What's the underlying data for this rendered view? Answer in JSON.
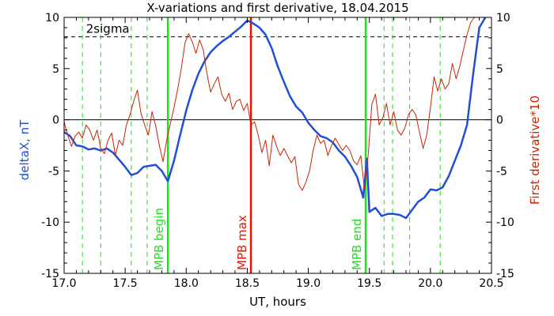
{
  "chart_data": {
    "type": "line",
    "title": "X-variations and first derivative, 18.04.2015",
    "xlabel": "UT, hours",
    "ylabel_left": "deltaX, nT",
    "ylabel_right": "First derivative*10",
    "xlim": [
      17.0,
      20.5
    ],
    "ylim": [
      -15,
      10
    ],
    "x_ticks": [
      "17.0",
      "17.5",
      "18.0",
      "18.5",
      "19.0",
      "19.5",
      "20.0",
      "20.5"
    ],
    "y_ticks_left": [
      "-15",
      "-10",
      "-5",
      "0",
      "5",
      "10"
    ],
    "y_ticks_right": [
      "-15",
      "-10",
      "-5",
      "0",
      "5",
      "10"
    ],
    "colors": {
      "deltaX": "#1f4fd6",
      "derivative": "#cc2200",
      "mpb_edges": "#22dd22",
      "mpb_max": "#ee1100",
      "sigma": "#000000"
    },
    "threshold": {
      "label": "2sigma",
      "value": 8.1
    },
    "vertical_lines": [
      {
        "x": 17.85,
        "label": "MPB begin",
        "style": "solid",
        "color": "#22dd22"
      },
      {
        "x": 18.53,
        "label": "MPB max",
        "style": "solid",
        "color": "#ee1100"
      },
      {
        "x": 19.47,
        "label": "MPB end",
        "style": "solid",
        "color": "#22dd22"
      },
      {
        "x": 17.15,
        "style": "dashed",
        "color": "#22dd22"
      },
      {
        "x": 17.3,
        "style": "dashed",
        "color": "#22dd22"
      },
      {
        "x": 17.55,
        "style": "dashed",
        "color": "#22dd22"
      },
      {
        "x": 17.68,
        "style": "dashed",
        "color": "#22dd22"
      },
      {
        "x": 19.62,
        "style": "dashed",
        "color": "#22dd22"
      },
      {
        "x": 19.69,
        "style": "dashed",
        "color": "#22dd22"
      },
      {
        "x": 19.83,
        "style": "dashed",
        "color": "#22dd22"
      },
      {
        "x": 20.08,
        "style": "dashed",
        "color": "#22dd22"
      }
    ],
    "series": [
      {
        "axis": "left",
        "x": [
          17.0,
          17.05,
          17.1,
          17.15,
          17.2,
          17.25,
          17.3,
          17.35,
          17.4,
          17.45,
          17.5,
          17.55,
          17.6,
          17.65,
          17.7,
          17.75,
          17.8,
          17.85,
          17.9,
          17.95,
          18.0,
          18.05,
          18.1,
          18.15,
          18.2,
          18.25,
          18.3,
          18.35,
          18.4,
          18.45,
          18.5,
          18.55,
          18.6,
          18.65,
          18.7,
          18.75,
          18.8,
          18.85,
          18.9,
          18.95,
          19.0,
          19.05,
          19.1,
          19.15,
          19.2,
          19.25,
          19.3,
          19.35,
          19.4,
          19.45,
          19.48,
          19.5,
          19.55,
          19.6,
          19.65,
          19.7,
          19.75,
          19.8,
          19.85,
          19.9,
          19.95,
          20.0,
          20.05,
          20.1,
          20.15,
          20.2,
          20.25,
          20.3,
          20.35,
          20.4,
          20.45
        ],
        "values": [
          -1.2,
          -1.6,
          -2.5,
          -2.6,
          -2.9,
          -2.8,
          -3.0,
          -2.8,
          -3.2,
          -3.9,
          -4.6,
          -5.4,
          -5.2,
          -4.6,
          -4.5,
          -4.4,
          -5.0,
          -6.0,
          -4.0,
          -1.5,
          0.9,
          2.9,
          4.5,
          5.7,
          6.6,
          7.2,
          7.7,
          8.1,
          8.6,
          9.1,
          9.7,
          9.4,
          9.0,
          8.3,
          7.0,
          5.2,
          3.7,
          2.3,
          1.3,
          0.7,
          -0.3,
          -1.0,
          -1.6,
          -1.8,
          -2.2,
          -3.0,
          -3.6,
          -4.5,
          -5.6,
          -7.6,
          -3.8,
          -9.0,
          -8.6,
          -9.4,
          -9.2,
          -9.2,
          -9.3,
          -9.6,
          -8.8,
          -8.0,
          -7.6,
          -6.8,
          -6.9,
          -6.6,
          -5.5,
          -4.0,
          -2.5,
          -0.5,
          4.5,
          9.0,
          10.0
        ]
      },
      {
        "axis": "right",
        "x": [
          17.0,
          17.03,
          17.06,
          17.09,
          17.12,
          17.15,
          17.18,
          17.21,
          17.24,
          17.27,
          17.3,
          17.33,
          17.36,
          17.39,
          17.42,
          17.45,
          17.48,
          17.51,
          17.54,
          17.57,
          17.6,
          17.63,
          17.66,
          17.69,
          17.72,
          17.75,
          17.78,
          17.81,
          17.84,
          17.87,
          17.9,
          17.93,
          17.96,
          17.99,
          18.02,
          18.05,
          18.08,
          18.11,
          18.14,
          18.17,
          18.2,
          18.23,
          18.26,
          18.29,
          18.32,
          18.35,
          18.38,
          18.41,
          18.44,
          18.47,
          18.5,
          18.53,
          18.56,
          18.59,
          18.62,
          18.65,
          18.68,
          18.71,
          18.74,
          18.77,
          18.8,
          18.83,
          18.86,
          18.89,
          18.92,
          18.95,
          18.98,
          19.01,
          19.04,
          19.07,
          19.1,
          19.13,
          19.16,
          19.19,
          19.22,
          19.25,
          19.28,
          19.31,
          19.34,
          19.37,
          19.4,
          19.43,
          19.46,
          19.49,
          19.52,
          19.55,
          19.58,
          19.61,
          19.64,
          19.67,
          19.7,
          19.73,
          19.76,
          19.79,
          19.82,
          19.85,
          19.88,
          19.91,
          19.94,
          19.97,
          20.0,
          20.03,
          20.06,
          20.09,
          20.12,
          20.15,
          20.18,
          20.21,
          20.24,
          20.27,
          20.3,
          20.33,
          20.36
        ],
        "values": [
          -0.2,
          -1.5,
          -2.6,
          -1.6,
          -1.2,
          -1.8,
          -0.5,
          -1.0,
          -2.0,
          -1.0,
          -2.8,
          -3.3,
          -2.0,
          -1.3,
          -3.5,
          -2.0,
          -2.5,
          -0.5,
          0.5,
          1.8,
          2.9,
          0.6,
          -0.5,
          -1.5,
          0.8,
          -0.6,
          -2.5,
          -4.1,
          -2.0,
          -0.4,
          1.2,
          3.0,
          5.0,
          7.5,
          8.4,
          7.6,
          6.5,
          7.8,
          6.8,
          4.5,
          2.7,
          3.5,
          4.2,
          2.5,
          1.8,
          2.6,
          1.0,
          1.8,
          2.0,
          0.9,
          1.6,
          -0.5,
          -0.2,
          -1.5,
          -3.2,
          -2.0,
          -4.5,
          -1.5,
          -2.6,
          -3.5,
          -2.8,
          -3.5,
          -4.2,
          -3.6,
          -6.3,
          -6.9,
          -6.1,
          -5.0,
          -3.0,
          -1.5,
          -2.3,
          -2.0,
          -3.5,
          -2.5,
          -1.8,
          -2.4,
          -3.0,
          -2.5,
          -3.0,
          -4.0,
          -4.4,
          -3.5,
          -6.8,
          -3.5,
          1.5,
          2.5,
          -0.5,
          0.2,
          1.6,
          -0.5,
          0.8,
          -1.0,
          -1.5,
          -0.8,
          0.5,
          1.0,
          0.5,
          -1.2,
          -2.8,
          -1.5,
          1.2,
          4.2,
          2.8,
          4.0,
          3.0,
          3.5,
          5.5,
          4.0,
          5.2,
          6.8,
          8.3,
          9.5,
          10.0
        ]
      }
    ]
  }
}
